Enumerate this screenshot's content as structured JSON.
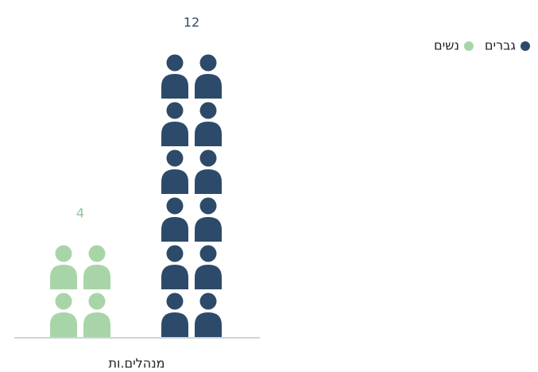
{
  "chart_data": {
    "type": "pictogram",
    "categories": [
      "מנהלים.ות"
    ],
    "series": [
      {
        "name": "נשים",
        "color": "#a8d5a8",
        "label_color": "#8cc49c",
        "values": [
          4
        ]
      },
      {
        "name": "גברים",
        "color": "#2d4a6b",
        "label_color": "#2d4a6b",
        "values": [
          12
        ]
      }
    ],
    "legend": "top-right"
  }
}
